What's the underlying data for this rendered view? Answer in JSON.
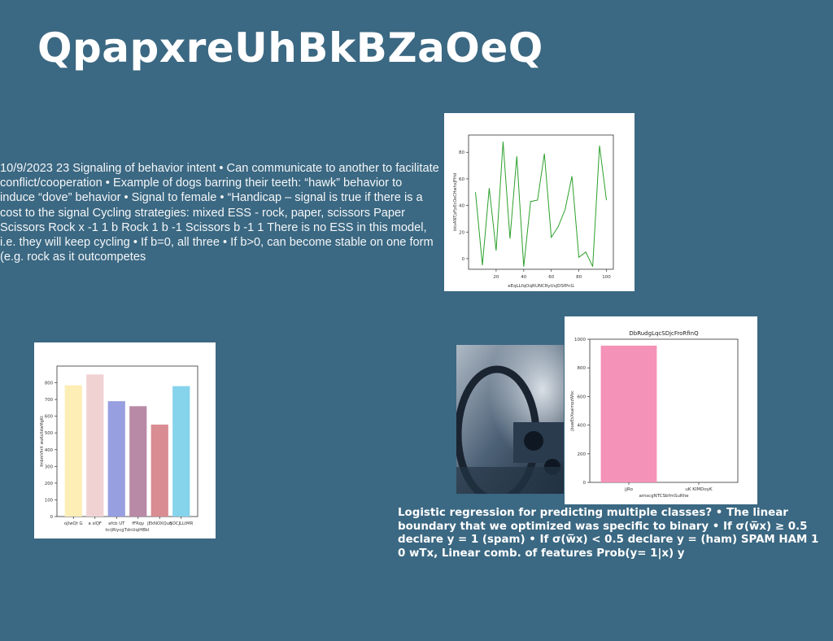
{
  "slide": {
    "title": "QpapxreUhBkBZaOeQ",
    "body_text": "10/9/2023 23 Signaling of behavior intent • Can communicate to another to facilitate conflict/cooperation • Example of dogs barring their teeth: “hawk” behavior to induce “dove” behavior • Signal to female • “Handicap – signal is true if there is a cost to the signal Cycling strategies: mixed ESS - rock, paper, scissors Paper Scissors Rock x -1 1 b Rock 1 b -1 Scissors b -1 1 There is no ESS in this model, i.e. they will keep cycling • If b=0, all three • If b>0, can become stable on one form (e.g. rock as it outcompetes",
    "bold_text": "Logistic regression for predicting multiple classes? • The linear boundary that we optimized was specific to binary • If σ(w̅x) ≥ 0.5 declare y = 1 (spam) • If σ(w̅x) < 0.5 declare y = (ham) SPAM HAM 1 0 wTx, Linear comb. of features Prob(y= 1|x) y"
  },
  "chart_data": [
    {
      "type": "line",
      "title": "",
      "xlabel": "eEqLLfqOqRUNCRyUsJDSfPnG",
      "ylabel": "bkvANTjzFpEcOeCHwhxJFHd",
      "xlim": [
        0,
        105
      ],
      "ylim": [
        -8,
        93
      ],
      "xticks": [
        20,
        40,
        60,
        80,
        100
      ],
      "yticks": [
        0,
        20,
        40,
        60,
        80
      ],
      "color": "#2ca02c",
      "x": [
        5,
        10,
        15,
        20,
        25,
        30,
        35,
        40,
        45,
        50,
        55,
        60,
        65,
        70,
        75,
        80,
        85,
        90,
        95,
        100
      ],
      "y": [
        50,
        -5,
        53,
        6,
        88,
        15,
        77,
        -6,
        43,
        44,
        79,
        16,
        24,
        37,
        62,
        1,
        5,
        -6,
        85,
        44
      ]
    },
    {
      "type": "bar",
      "title": "",
      "xlabel": "tcrjRiycgTdnUqiHBkI",
      "ylabel": "fmbmVhrX wuKoXdwMgKt",
      "ylim": [
        0,
        900
      ],
      "yticks": [
        0,
        100,
        200,
        300,
        400,
        500,
        600,
        700,
        800
      ],
      "categories": [
        "oJlwQt G",
        "a sIQF",
        "afcb UT",
        "fFRqy",
        "jEkNOXQuq",
        "SOCJLLtMR"
      ],
      "values": [
        785,
        850,
        690,
        660,
        550,
        780
      ],
      "colors": [
        "#fdeeb6",
        "#f1d2d3",
        "#979fe0",
        "#b98aa6",
        "#d98c92",
        "#86d3ec"
      ]
    },
    {
      "type": "bar",
      "title": "DbRudgLqcSDjcFroRfinQ",
      "xlabel": "amscgNTCSbfmSuRhe",
      "ylabel": "jbuwEsXeaimpzWbc",
      "ylim": [
        0,
        1000
      ],
      "yticks": [
        0,
        200,
        400,
        600,
        800,
        1000
      ],
      "categories": [
        "jjRo",
        "uK KlMDoyK"
      ],
      "values": [
        955,
        0
      ],
      "colors": [
        "#f492b7",
        "#f492b7"
      ]
    }
  ]
}
